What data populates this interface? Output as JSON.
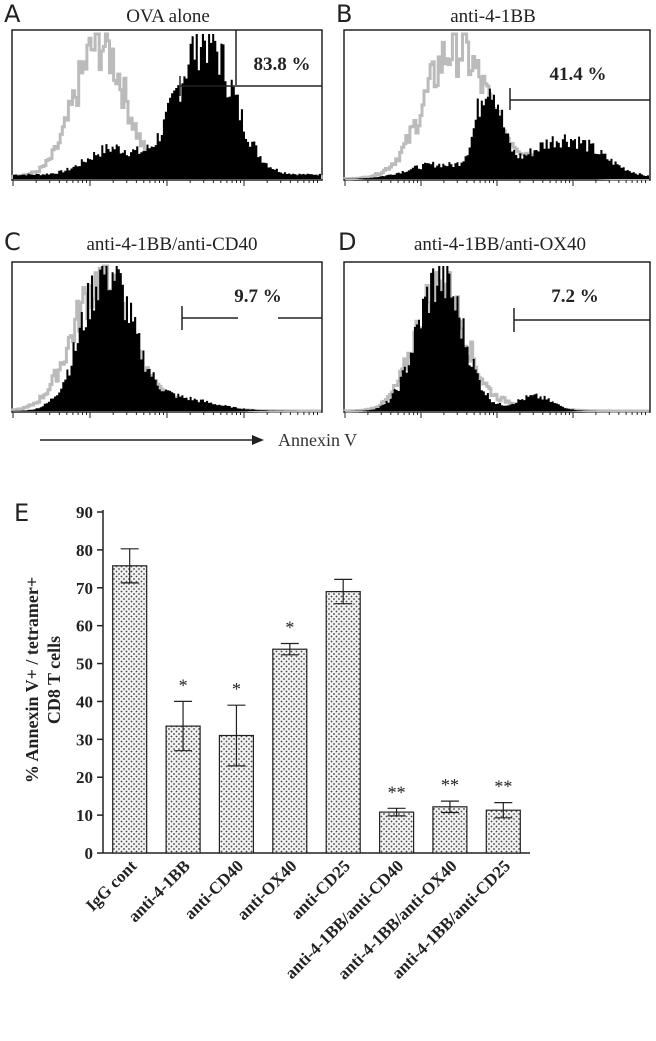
{
  "flow_panels": [
    {
      "letter": "A",
      "title": "OVA alone",
      "gate_label": "83.8 %",
      "gate_start": 0.54
    },
    {
      "letter": "B",
      "title": "anti-4-1BB",
      "gate_label": "41.4 %",
      "gate_start": 0.5
    },
    {
      "letter": "C",
      "title": "anti-4-1BB/anti-CD40",
      "gate_label": "9.7 %",
      "gate_start": 0.55
    },
    {
      "letter": "D",
      "title": "anti-4-1BB/anti-OX40",
      "gate_label": "7.2 %",
      "gate_start": 0.53
    }
  ],
  "flow_axis_label": "Annexin V",
  "chart_data": {
    "type": "bar",
    "panel_letter": "E",
    "title": "",
    "xlabel": "",
    "ylabel_line1": "% Annexin V+ / tetramer+",
    "ylabel_line2": "CD8 T cells",
    "ylim": [
      0,
      90
    ],
    "yticks": [
      "0",
      "10",
      "20",
      "30",
      "40",
      "50",
      "60",
      "70",
      "80",
      "90"
    ],
    "grid": false,
    "bar_fill": "dotted",
    "categories": [
      "IgG cont",
      "anti-4-1BB",
      "anti-CD40",
      "anti-OX40",
      "anti-CD25",
      "anti-4-1BB/anti-CD40",
      "anti-4-1BB/anti-OX40",
      "anti-4-1BB/anti-CD25"
    ],
    "values": [
      75.8,
      33.5,
      31,
      53.8,
      69,
      10.8,
      12.2,
      11.3
    ],
    "errors": [
      4.5,
      6.5,
      8,
      1.5,
      3.2,
      1,
      1.5,
      2
    ],
    "significance": [
      "",
      "*",
      "*",
      "*",
      "",
      "**",
      "**",
      "**"
    ]
  }
}
